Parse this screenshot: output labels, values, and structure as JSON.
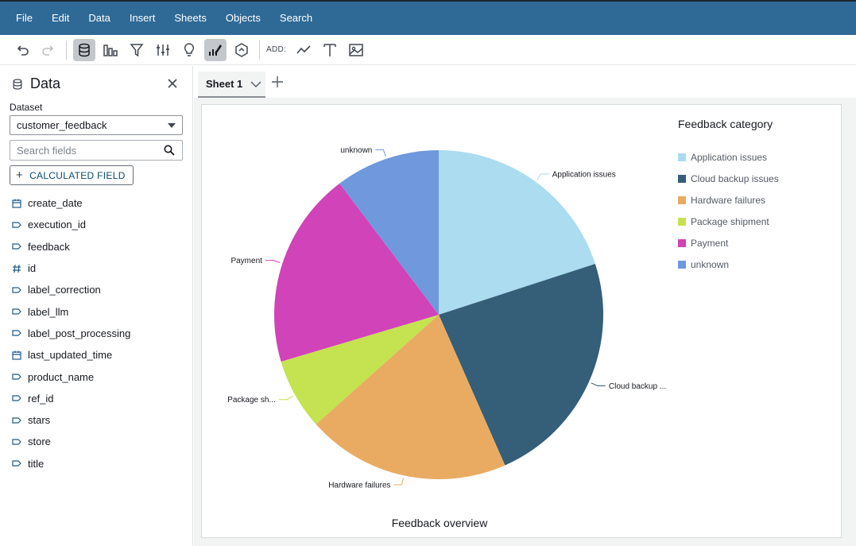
{
  "menu": [
    "File",
    "Edit",
    "Data",
    "Insert",
    "Sheets",
    "Objects",
    "Search"
  ],
  "toolbar": {
    "add_label": "ADD:"
  },
  "panel": {
    "title": "Data",
    "dataset_label": "Dataset",
    "dataset_value": "customer_feedback",
    "search_placeholder": "Search fields",
    "calc_button": "CALCULATED FIELD",
    "fields": [
      {
        "name": "create_date",
        "type": "date"
      },
      {
        "name": "execution_id",
        "type": "string"
      },
      {
        "name": "feedback",
        "type": "string"
      },
      {
        "name": "id",
        "type": "number"
      },
      {
        "name": "label_correction",
        "type": "string"
      },
      {
        "name": "label_llm",
        "type": "string"
      },
      {
        "name": "label_post_processing",
        "type": "string"
      },
      {
        "name": "last_updated_time",
        "type": "date"
      },
      {
        "name": "product_name",
        "type": "string"
      },
      {
        "name": "ref_id",
        "type": "string"
      },
      {
        "name": "stars",
        "type": "string"
      },
      {
        "name": "store",
        "type": "string"
      },
      {
        "name": "title",
        "type": "string"
      }
    ]
  },
  "sheet": {
    "tab_label": "Sheet 1"
  },
  "chart_data": {
    "type": "pie",
    "title": "Feedback overview",
    "legend_title": "Feedback category",
    "legend_position": "top-right",
    "categories": [
      "Application issues",
      "Cloud backup issues",
      "Hardware failures",
      "Package shipment",
      "Payment",
      "unknown"
    ],
    "slice_labels": [
      "Application issues",
      "Cloud backup ...",
      "Hardware failures",
      "Package sh...",
      "Payment",
      "unknown"
    ],
    "values": [
      20.0,
      23.4,
      20.0,
      7.0,
      19.3,
      10.3
    ],
    "colors": [
      "#abdcef",
      "#355e78",
      "#e9ab62",
      "#c5e250",
      "#d143b8",
      "#6f98dd"
    ]
  }
}
